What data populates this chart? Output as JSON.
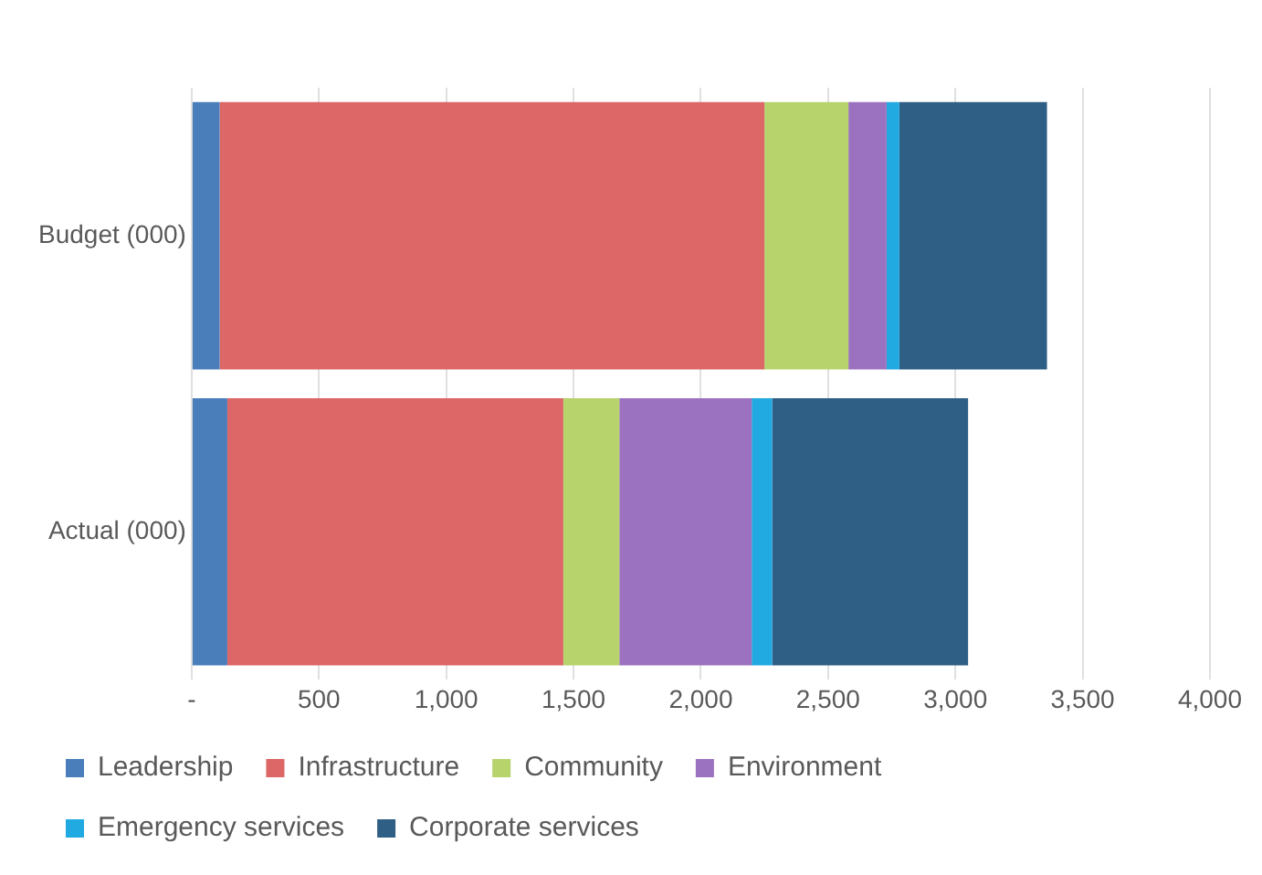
{
  "chart_data": {
    "type": "bar",
    "orientation": "horizontal",
    "stacked": true,
    "categories": [
      "Budget (000)",
      "Actual (000)"
    ],
    "series": [
      {
        "name": "Leadership",
        "color": "#4a7ebb",
        "values": [
          110,
          140
        ]
      },
      {
        "name": "Infrastructure",
        "color": "#dd6666",
        "values": [
          2140,
          1320
        ]
      },
      {
        "name": "Community",
        "color": "#b7d36b",
        "values": [
          330,
          220
        ]
      },
      {
        "name": "Environment",
        "color": "#9b72c0",
        "values": [
          150,
          520
        ]
      },
      {
        "name": "Emergency services",
        "color": "#21a9e1",
        "values": [
          50,
          80
        ]
      },
      {
        "name": "Corporate services",
        "color": "#2f5f85",
        "values": [
          580,
          770
        ]
      }
    ],
    "xlim": [
      0,
      4000
    ],
    "xticks": [
      {
        "value": 0,
        "label": "-"
      },
      500,
      {
        "value": 1000,
        "label": "1,000"
      },
      {
        "value": 1500,
        "label": "1,500"
      },
      {
        "value": 2000,
        "label": "2,000"
      },
      {
        "value": 2500,
        "label": "2,500"
      },
      {
        "value": 3000,
        "label": "3,000"
      },
      {
        "value": 3500,
        "label": "3,500"
      },
      {
        "value": 4000,
        "label": "4,000"
      }
    ],
    "grid": "x",
    "legend": "bottom"
  }
}
